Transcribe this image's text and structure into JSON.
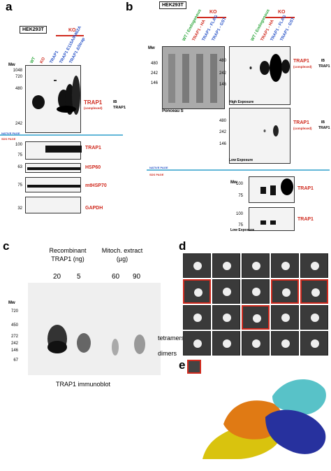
{
  "panel_labels": {
    "a": "a",
    "b": "b",
    "c": "c",
    "d": "d",
    "e": "e"
  },
  "a": {
    "cell_line": "HEK293T",
    "ko": "KO",
    "lanes": [
      {
        "label": "WT",
        "color": "#2aa53a"
      },
      {
        "label": "KO",
        "color": "#d02a1e"
      },
      {
        "label": "TRAP1",
        "color": "#2a55c8"
      },
      {
        "label": "TRAP1 E115A/R402A",
        "color": "#2a55c8"
      },
      {
        "label": "TRAP1 ΔStrap",
        "color": "#2a55c8"
      }
    ],
    "mw_header": "Mw",
    "native_mw": [
      "1048",
      "720",
      "480",
      "242"
    ],
    "native_page": "NATIVE PAGE",
    "sds_page": "SDS PAGE",
    "trap1_label": "TRAP1",
    "complexed": "(complexed)",
    "ib_label": "IB",
    "ib_target": "TRAP1",
    "sds_mw": [
      "100",
      "75",
      "63",
      "75",
      "32"
    ],
    "sds_bands": [
      "TRAP1",
      "HSP60",
      "mtHSP70",
      "GAPDH"
    ]
  },
  "b": {
    "cell_line": "HEK293T",
    "ko": "KO",
    "lanes_left": [
      {
        "label": "WT / Endogenous",
        "color": "#2aa53a"
      },
      {
        "label": "TRAP1 - HA",
        "color": "#d02a1e"
      },
      {
        "label": "TRAP1 - FLAG",
        "color": "#2a55c8"
      },
      {
        "label": "TRAP1 - GST",
        "color": "#2a55c8"
      }
    ],
    "lanes_right": [
      {
        "label": "WT / Endogenous",
        "color": "#2aa53a"
      },
      {
        "label": "TRAP1 - HA",
        "color": "#d02a1e"
      },
      {
        "label": "TRAP1 - FLAG",
        "color": "#2a55c8"
      },
      {
        "label": "TRAP1 - GST",
        "color": "#2a55c8"
      }
    ],
    "mw_header": "Mw",
    "ponceau_mw": [
      "480",
      "242",
      "146"
    ],
    "ponceau": "Ponceau S",
    "hi_mw": [
      "480",
      "242",
      "146"
    ],
    "high_exposure": "High Exposure",
    "lo_mw": [
      "480",
      "242",
      "146"
    ],
    "low_exposure": "Low Exposure",
    "trap1": "TRAP1",
    "complexed": "(complexed)",
    "ib": "IB",
    "ib_target": "TRAP1",
    "native_page": "NATIVE PAGE",
    "sds_page": "SDS PAGE",
    "sds_mw_header": "Mw",
    "sds1_mw": [
      "100",
      "75"
    ],
    "sds2_mw": [
      "100",
      "75"
    ],
    "low_exposure2": "Low Exposure"
  },
  "c": {
    "col1_title": "Recombinant TRAP1 (ng)",
    "col2_title": "Mitoch. extract (µg)",
    "amounts": [
      "20",
      "5",
      "60",
      "90"
    ],
    "mw_header": "Mw",
    "mw": [
      "720",
      "450",
      "272",
      "242",
      "146",
      "67"
    ],
    "tetramers": "tetramers",
    "dimers": "dimers",
    "caption": "TRAP1 immunoblot"
  },
  "d": {
    "grid_rows": 4,
    "grid_cols": 5,
    "highlighted": [
      [
        1,
        0
      ],
      [
        1,
        3
      ],
      [
        1,
        4
      ],
      [
        2,
        2
      ]
    ]
  },
  "e": {}
}
